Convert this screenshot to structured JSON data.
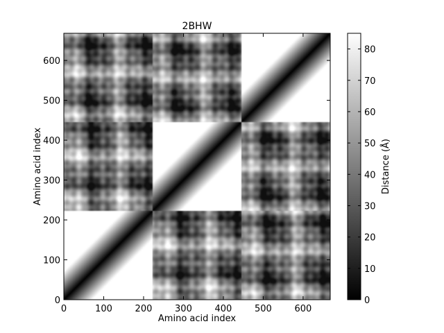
{
  "chart_data": {
    "type": "heatmap",
    "title": "2BHW",
    "xlabel": "Amino acid index",
    "ylabel": "Amino acid index",
    "xlim": [
      0,
      668
    ],
    "ylim": [
      0,
      668
    ],
    "xticks": [
      0,
      100,
      200,
      300,
      400,
      500,
      600
    ],
    "yticks": [
      0,
      100,
      200,
      300,
      400,
      500,
      600
    ],
    "block_boundaries": [
      223,
      446
    ],
    "colorbar": {
      "label": "Distance (Å)",
      "min": 0,
      "max": 85,
      "ticks": [
        0,
        10,
        20,
        30,
        40,
        50,
        60,
        70,
        80
      ],
      "colormap": "gray"
    },
    "colors": {
      "low": "#000000",
      "high": "#ffffff",
      "frame": "#000000"
    }
  }
}
